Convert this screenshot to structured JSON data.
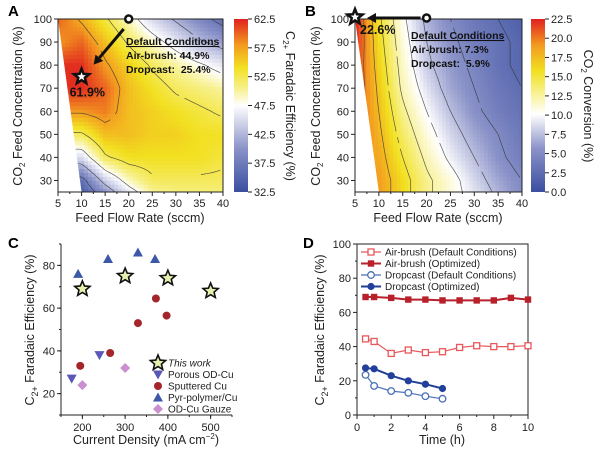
{
  "chart_data": [
    {
      "panel": "A",
      "type": "heatmap",
      "xlabel": "Feed Flow Rate (sccm)",
      "ylabel": "CO2 Feed Concentration (%)",
      "colorbar_label": "C2+ Faradaic Efficiency (%)",
      "xlim": [
        5,
        40
      ],
      "ylim": [
        25,
        100
      ],
      "xticks": [
        "5",
        "10",
        "15",
        "20",
        "25",
        "30",
        "35",
        "40"
      ],
      "yticks": [
        "30",
        "40",
        "50",
        "60",
        "70",
        "80",
        "90",
        "100"
      ],
      "colorbar_ticks": [
        "32.5",
        "37.5",
        "42.5",
        "47.5",
        "52.5",
        "57.5",
        "62.5"
      ],
      "colorbar_range": [
        32.5,
        62.5
      ],
      "grid_x": [
        5,
        10,
        15,
        20,
        25,
        30,
        35,
        40
      ],
      "grid_y": [
        25,
        30,
        40,
        50,
        60,
        70,
        80,
        90,
        100
      ],
      "grid_z": [
        [
          null,
          34,
          40,
          46,
          50,
          51,
          51,
          51
        ],
        [
          null,
          36,
          44,
          49,
          52,
          52,
          52,
          52
        ],
        [
          null,
          45,
          52,
          54,
          54,
          54,
          54,
          53
        ],
        [
          null,
          52,
          56,
          56,
          55,
          55,
          54,
          54
        ],
        [
          null,
          58,
          59,
          56,
          55,
          54,
          53,
          52
        ],
        [
          null,
          62,
          60,
          56,
          54,
          52,
          51,
          50
        ],
        [
          null,
          62,
          58,
          55,
          52,
          50,
          48,
          46
        ],
        [
          58,
          60,
          56,
          52,
          49,
          46,
          43,
          41
        ],
        [
          60,
          57,
          53,
          49,
          45,
          42,
          39,
          36
        ]
      ],
      "no_data_boundary": [
        [
          5,
          100
        ],
        [
          10,
          25
        ]
      ],
      "optimum": {
        "x": 10,
        "y": 75,
        "label": "61.9%"
      },
      "default_point": {
        "x": 20,
        "y": 100
      },
      "annotation": {
        "title": "Default Conditions",
        "line1": "Air-brush: 44.9%",
        "line2": "Dropcast:  25.4%"
      }
    },
    {
      "panel": "B",
      "type": "heatmap",
      "xlabel": "Feed Flow Rate (sccm)",
      "ylabel": "CO2 Feed Concentration (%)",
      "colorbar_label": "CO2 Conversion (%)",
      "xlim": [
        5,
        40
      ],
      "ylim": [
        25,
        100
      ],
      "xticks": [
        "5",
        "10",
        "15",
        "20",
        "25",
        "30",
        "35",
        "40"
      ],
      "yticks": [
        "30",
        "40",
        "50",
        "60",
        "70",
        "80",
        "90",
        "100"
      ],
      "colorbar_ticks": [
        "0.0",
        "2.5",
        "5.0",
        "7.5",
        "10.0",
        "12.5",
        "15.0",
        "17.5",
        "20.0",
        "22.5"
      ],
      "colorbar_range": [
        0,
        22.5
      ],
      "grid_x": [
        5,
        10,
        15,
        20,
        25,
        30,
        35,
        40
      ],
      "grid_y": [
        25,
        30,
        40,
        50,
        60,
        70,
        80,
        90,
        100
      ],
      "grid_z": [
        [
          null,
          19,
          16,
          13,
          11,
          9,
          7,
          5
        ],
        [
          null,
          19,
          16,
          13,
          11,
          8.5,
          6.5,
          5
        ],
        [
          null,
          18.5,
          15,
          12,
          9.5,
          7.5,
          5.5,
          4
        ],
        [
          21,
          18,
          14,
          11,
          8.5,
          6.5,
          5,
          3.5
        ],
        [
          21.5,
          17.5,
          13,
          10,
          7.5,
          5.5,
          4,
          3
        ],
        [
          22,
          17,
          12,
          9,
          6.5,
          5,
          3.5,
          2.5
        ],
        [
          22,
          16.5,
          11.5,
          8,
          6,
          4.5,
          3,
          2
        ],
        [
          22.5,
          16,
          11,
          7.5,
          5.5,
          4,
          3,
          2
        ],
        [
          22.6,
          15.5,
          10.5,
          7,
          5,
          3.5,
          2.5,
          1.5
        ]
      ],
      "no_data_boundary": [
        [
          5,
          100
        ],
        [
          10,
          25
        ]
      ],
      "optimum": {
        "x": 5,
        "y": 100,
        "label": "22.6%"
      },
      "default_point": {
        "x": 20,
        "y": 100
      },
      "annotation": {
        "title": "Default Conditions",
        "line1": "Air-brush: 7.3%",
        "line2": "Dropcast:  5.9%"
      }
    },
    {
      "panel": "C",
      "type": "scatter",
      "xlabel": "Current Density (mA cm-2)",
      "ylabel": "C2+ Faradaic Efficiency (%)",
      "xlim": [
        150,
        550
      ],
      "ylim": [
        10,
        90
      ],
      "xticks": [
        "200",
        "300",
        "400",
        "500"
      ],
      "yticks": [
        "20",
        "40",
        "60",
        "80"
      ],
      "legend_position": "bottom-right",
      "series": [
        {
          "name": "This work",
          "marker": "star",
          "color": "#e8f0b0",
          "italic": true,
          "points": [
            [
              200,
              69
            ],
            [
              300,
              75
            ],
            [
              400,
              74
            ],
            [
              500,
              68
            ]
          ]
        },
        {
          "name": "Porous OD-Cu",
          "marker": "triangle-down",
          "color": "#5a57b8",
          "points": [
            [
              175,
              27
            ],
            [
              240,
              38
            ]
          ]
        },
        {
          "name": "Sputtered Cu",
          "marker": "circle",
          "color": "#a3262b",
          "points": [
            [
              195,
              33
            ],
            [
              265,
              39
            ],
            [
              330,
              53
            ],
            [
              372,
              64.5
            ],
            [
              397,
              56.5
            ]
          ]
        },
        {
          "name": "Pyr-polymer/Cu",
          "marker": "triangle-up",
          "color": "#3d58a8",
          "points": [
            [
              190,
              76
            ],
            [
              260,
              83
            ],
            [
              330,
              86
            ],
            [
              370,
              83
            ]
          ]
        },
        {
          "name": "OD-Cu Gauze",
          "marker": "diamond",
          "color": "#c98fcf",
          "points": [
            [
              200,
              24
            ],
            [
              300,
              32
            ]
          ]
        }
      ]
    },
    {
      "panel": "D",
      "type": "line",
      "xlabel": "Time (h)",
      "ylabel": "C2+ Faradaic Efficiency (%)",
      "xlim": [
        0,
        10
      ],
      "ylim": [
        0,
        100
      ],
      "xticks": [
        "0",
        "2",
        "4",
        "6",
        "8",
        "10"
      ],
      "yticks": [
        "0",
        "20",
        "40",
        "60",
        "80",
        "100"
      ],
      "legend_position": "top",
      "series": [
        {
          "name": "Air-brush (Default Conditions)",
          "marker": "square-open",
          "color": "#e8575a",
          "x": [
            0.5,
            1,
            2,
            3,
            4,
            5,
            6,
            7,
            8,
            9,
            10
          ],
          "y": [
            44.5,
            43,
            36,
            38,
            36.5,
            37,
            39.5,
            40.5,
            40,
            40,
            40.5
          ]
        },
        {
          "name": "Air-brush (Optimized)",
          "marker": "square-filled",
          "color": "#b8202a",
          "x": [
            0.5,
            1,
            2,
            3,
            4,
            5,
            6,
            7,
            8,
            9,
            10
          ],
          "y": [
            69,
            69,
            68.5,
            67.5,
            67.5,
            67,
            67,
            67,
            67,
            68.5,
            67.5
          ]
        },
        {
          "name": "Dropcast (Default Conditions)",
          "marker": "circle-open",
          "color": "#4a6fb8",
          "x": [
            0.5,
            1,
            2,
            3,
            4,
            5
          ],
          "y": [
            23.5,
            17,
            14,
            13,
            11,
            9.5
          ]
        },
        {
          "name": "Dropcast (Optimized)",
          "marker": "circle-filled",
          "color": "#22409a",
          "x": [
            0.5,
            1,
            2,
            3,
            4,
            5
          ],
          "y": [
            27.5,
            27,
            23,
            20,
            18,
            15.5
          ]
        }
      ]
    }
  ],
  "panel_labels": [
    "A",
    "B",
    "C",
    "D"
  ]
}
